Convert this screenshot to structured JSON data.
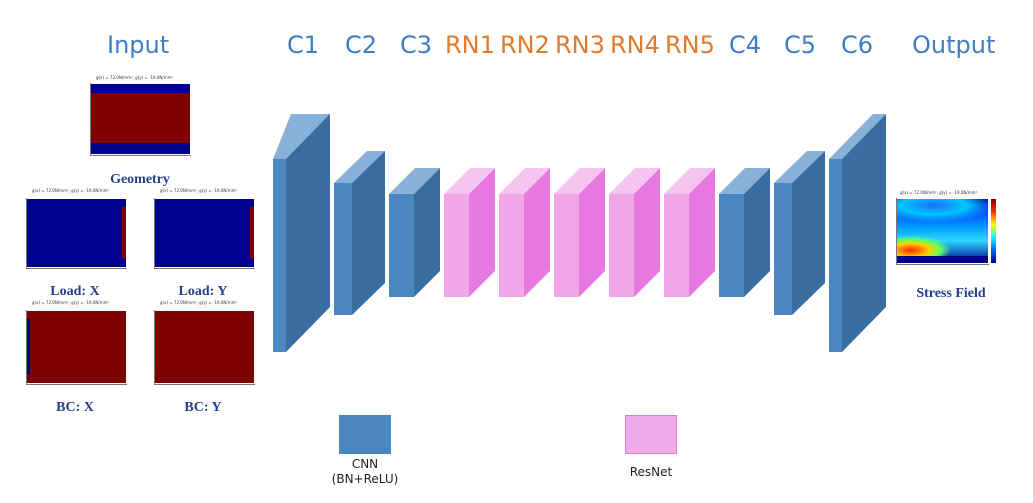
{
  "headers": {
    "input": "Input",
    "c1": "C1",
    "c2": "C2",
    "c3": "C3",
    "rn1": "RN1",
    "rn2": "RN2",
    "rn3": "RN3",
    "rn4": "RN4",
    "rn5": "RN5",
    "c4": "C4",
    "c5": "C5",
    "c6": "C6",
    "output": "Output"
  },
  "inputs": {
    "geometry": {
      "caption": "Geometry",
      "title": "g(x) = 72.0N/mm², g(y) = -19.0N/mm²"
    },
    "load_x": {
      "caption": "Load: X",
      "title": "g(x) = 72.0N/mm², g(y) = -19.0N/mm²"
    },
    "load_y": {
      "caption": "Load: Y",
      "title": "g(x) = 72.0N/mm², g(y) = -19.0N/mm²"
    },
    "bc_x": {
      "caption": "BC: X",
      "title": "g(x) = 72.0N/mm², g(y) = -19.0N/mm²"
    },
    "bc_y": {
      "caption": "BC: Y",
      "title": "g(x) = 72.0N/mm², g(y) = -19.0N/mm²"
    }
  },
  "output": {
    "caption": "Stress Field",
    "title": "g(x) = 72.0N/mm², g(y) = -19.0N/mm²"
  },
  "legend": {
    "cnn_line1": "CNN",
    "cnn_line2": "(BN+ReLU)",
    "resnet": "ResNet"
  },
  "colors": {
    "header_blue": "#3d7fc4",
    "header_orange": "#e07a2e",
    "caption_navy": "#24408a",
    "cnn_front": "#4a86c0",
    "cnn_side": "#3a6d9f",
    "cnn_top": "#88b0d8",
    "resnet_front": "#f2a6ea",
    "resnet_side": "#e678e0",
    "resnet_top": "#f6c4f0",
    "field_red": "#800000",
    "field_blue": "#00008f"
  }
}
